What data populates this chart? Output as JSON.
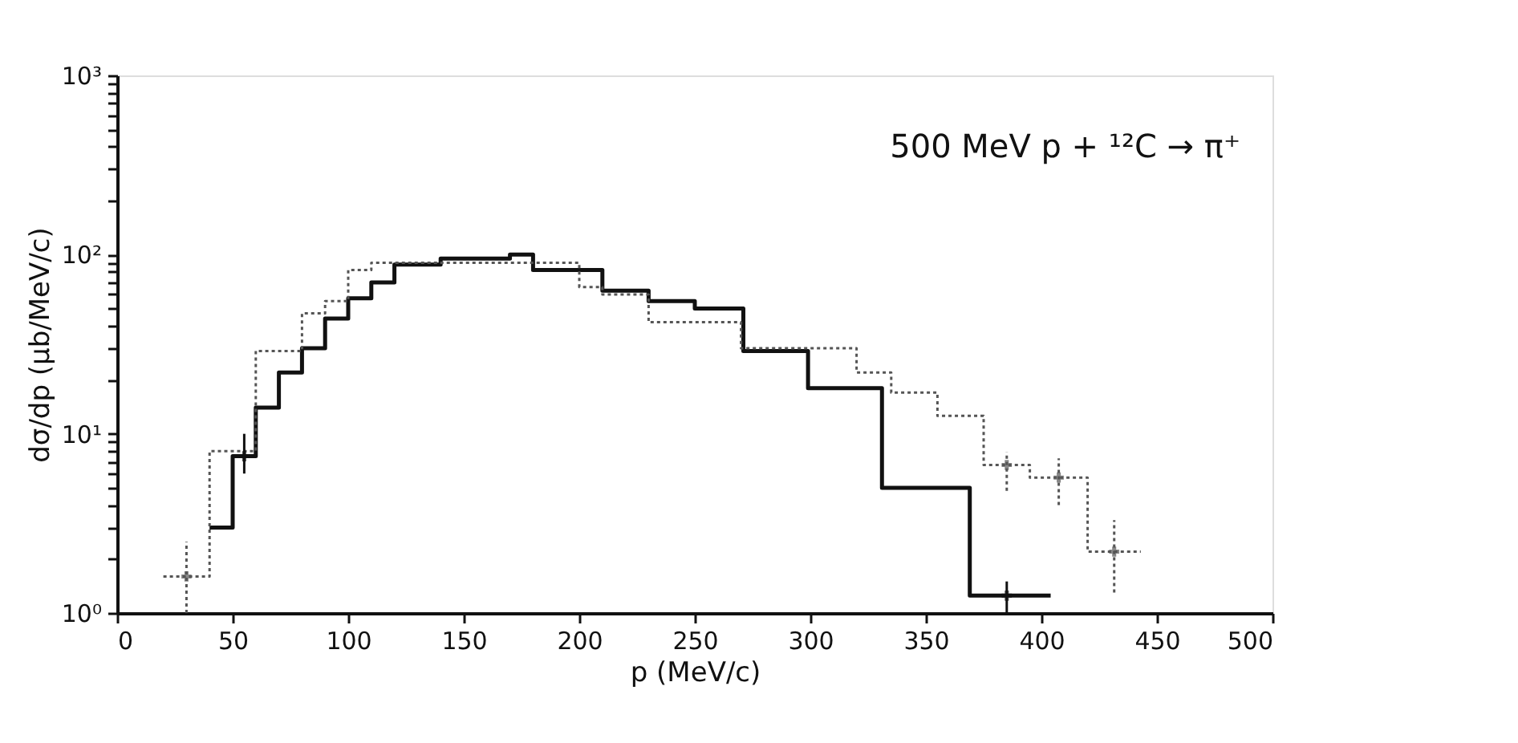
{
  "chart_data": {
    "type": "step",
    "xlabel": "p (MeV/c)",
    "ylabel": "dσ/dp (μb/MeV/c)",
    "annotations": [
      "500 MeV p + ¹²C → π⁺"
    ],
    "xlim": [
      0,
      500
    ],
    "xticks": [
      0,
      50,
      100,
      150,
      200,
      250,
      300,
      350,
      400,
      450,
      500
    ],
    "ylim": [
      1,
      1000
    ],
    "log": true,
    "yticks": [
      {
        "value": 1,
        "label": "10⁰"
      },
      {
        "value": 2,
        "label": null
      },
      {
        "value": 3,
        "label": null
      },
      {
        "value": 4,
        "label": null
      },
      {
        "value": 5,
        "label": null
      },
      {
        "value": 6,
        "label": null
      },
      {
        "value": 7,
        "label": null
      },
      {
        "value": 8,
        "label": null
      },
      {
        "value": 9,
        "label": null
      },
      {
        "value": 10,
        "label": "10¹"
      },
      {
        "value": 20,
        "label": null
      },
      {
        "value": 30,
        "label": null
      },
      {
        "value": 40,
        "label": null
      },
      {
        "value": 50,
        "label": null
      },
      {
        "value": 60,
        "label": null
      },
      {
        "value": 70,
        "label": null
      },
      {
        "value": 80,
        "label": null
      },
      {
        "value": 90,
        "label": null
      },
      {
        "value": 100,
        "label": "10²"
      },
      {
        "value": 200,
        "label": null
      },
      {
        "value": 300,
        "label": null
      },
      {
        "value": 400,
        "label": null
      },
      {
        "value": 500,
        "label": null
      },
      {
        "value": 600,
        "label": null
      },
      {
        "value": 700,
        "label": null
      },
      {
        "value": 800,
        "label": null
      },
      {
        "value": 900,
        "label": null
      },
      {
        "value": 1000,
        "label": "10³"
      }
    ],
    "grid": false,
    "series": [
      {
        "color": "#111111",
        "line_style": "solid",
        "x": [
          40,
          50,
          60,
          70,
          80,
          90,
          100,
          110,
          120,
          140,
          170,
          180,
          210,
          230,
          250,
          271,
          299,
          331,
          369,
          404
        ],
        "values": [
          3,
          7.5,
          14,
          22,
          30,
          44,
          57,
          70,
          88,
          95,
          100,
          82,
          63,
          55,
          50,
          29,
          18,
          5,
          1.25,
          1.25
        ]
      },
      {
        "color": "#555555",
        "line_style": "dotted",
        "x": [
          20,
          40,
          60,
          80,
          90,
          100,
          110,
          200,
          210,
          230,
          270,
          300,
          320,
          335,
          355,
          375,
          395,
          420,
          443
        ],
        "values": [
          1.6,
          8,
          29,
          47,
          55,
          82,
          90,
          66,
          60,
          42,
          30,
          30,
          22,
          17,
          12.6,
          6.7,
          5.7,
          2.2,
          2.2
        ]
      },
      {
        "type": "scatter",
        "marker": "cross",
        "color": "#111111",
        "line_style": "solid",
        "x": [
          55,
          385
        ],
        "values": [
          7.5,
          1.25
        ],
        "errors": [
          [
            6,
            10
          ],
          [
            1,
            1.5
          ]
        ]
      },
      {
        "type": "scatter",
        "marker": "cross",
        "color": "#555555",
        "line_style": "dotted",
        "x": [
          30,
          385,
          407.5,
          431.5
        ],
        "values": [
          1.6,
          6.7,
          5.7,
          2.2
        ],
        "errors": [
          [
            1,
            2.5
          ],
          [
            4.8,
            7.9
          ],
          [
            4,
            7.3
          ],
          [
            1.3,
            3.3
          ]
        ]
      }
    ]
  }
}
